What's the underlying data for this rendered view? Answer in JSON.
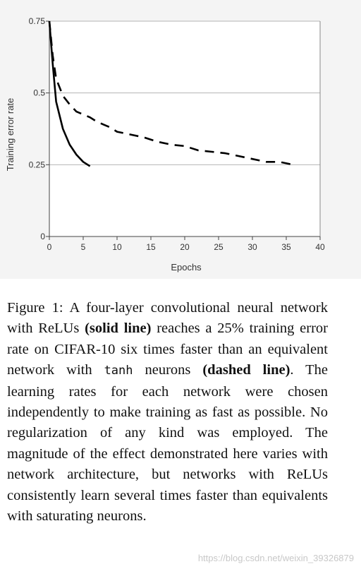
{
  "chart_data": {
    "type": "line",
    "xlabel": "Epochs",
    "ylabel": "Training error rate",
    "xlim": [
      0,
      40
    ],
    "ylim": [
      0,
      0.75
    ],
    "x_ticks": [
      "0",
      "5",
      "10",
      "15",
      "20",
      "25",
      "30",
      "35",
      "40"
    ],
    "y_ticks": [
      "0",
      "0.25",
      "0.5",
      "0.75"
    ],
    "grid": "horizontal",
    "series": [
      {
        "style": "solid",
        "x": [
          0,
          0.5,
          1,
          2,
          3,
          4,
          5,
          6
        ],
        "y": [
          0.75,
          0.6,
          0.47,
          0.375,
          0.32,
          0.285,
          0.26,
          0.245
        ]
      },
      {
        "style": "dashed",
        "x": [
          0,
          0.5,
          1,
          2,
          3,
          4,
          5,
          6,
          7,
          8,
          9,
          10,
          12,
          14,
          16,
          18,
          20,
          22,
          24,
          26,
          28,
          30,
          32,
          34,
          36
        ],
        "y": [
          0.75,
          0.63,
          0.55,
          0.49,
          0.46,
          0.435,
          0.425,
          0.415,
          0.4,
          0.39,
          0.38,
          0.365,
          0.355,
          0.345,
          0.33,
          0.32,
          0.315,
          0.3,
          0.295,
          0.29,
          0.28,
          0.27,
          0.26,
          0.26,
          0.25
        ]
      }
    ]
  },
  "caption": {
    "part1": "Figure 1:  A four-layer convolutional neural network with ReLUs ",
    "bold1": "(solid line)",
    "part2": " reaches a 25% training error rate on CIFAR-10 six times faster than an equivalent network with ",
    "mono": "tanh",
    "part3": " neurons ",
    "bold2": "(dashed line)",
    "part4": ". The learning rates for each network were chosen independently to make training as fast as possible.  No regularization of any kind was employed. The magnitude of the effect demonstrated here varies with network architecture, but networks with ReLUs consistently learn several times faster than equivalents with saturating neurons."
  },
  "watermark": "https://blog.csdn.net/weixin_39326879"
}
